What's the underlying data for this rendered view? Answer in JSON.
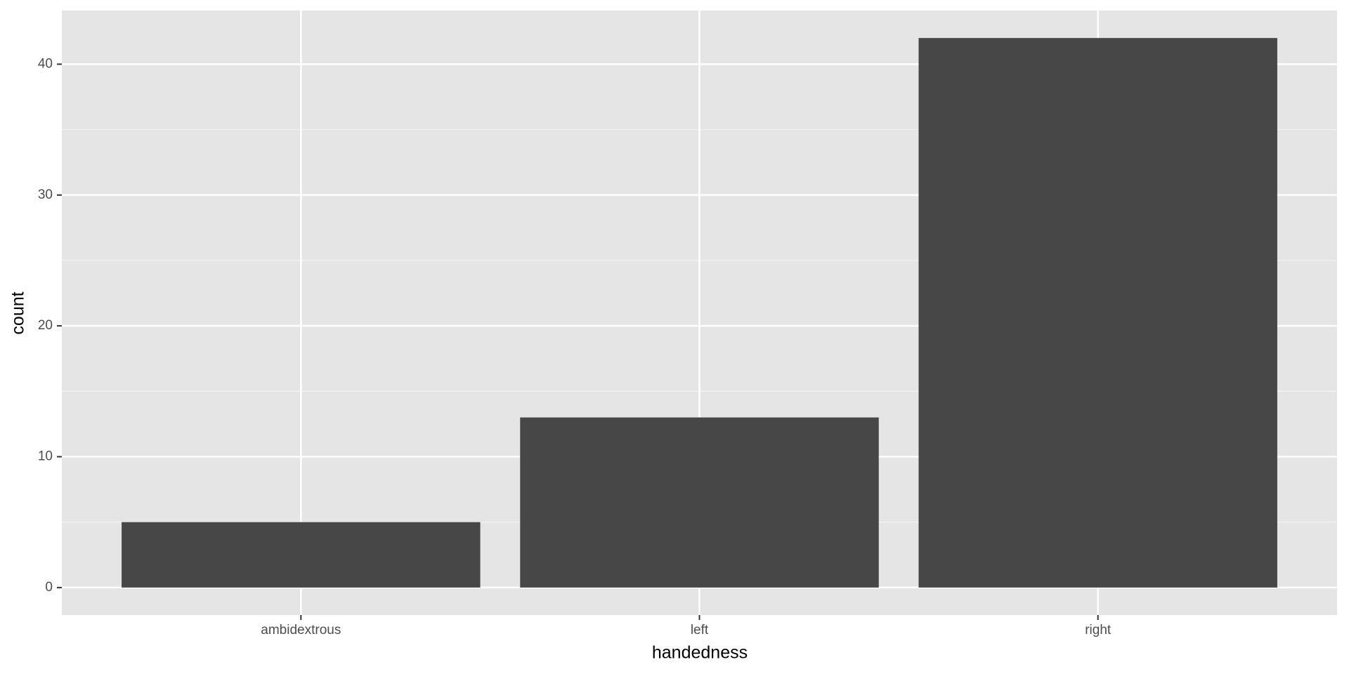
{
  "chart_data": {
    "type": "bar",
    "categories": [
      "ambidextrous",
      "left",
      "right"
    ],
    "values": [
      5,
      13,
      42
    ],
    "color": "#474747",
    "ylim": [
      -2.1,
      44.1
    ],
    "yticks": [
      0,
      10,
      20,
      30,
      40
    ],
    "xlabel": "handedness",
    "ylabel": "count",
    "grid": true,
    "minor_grid": true,
    "panel_color": "#e5e5e5"
  }
}
